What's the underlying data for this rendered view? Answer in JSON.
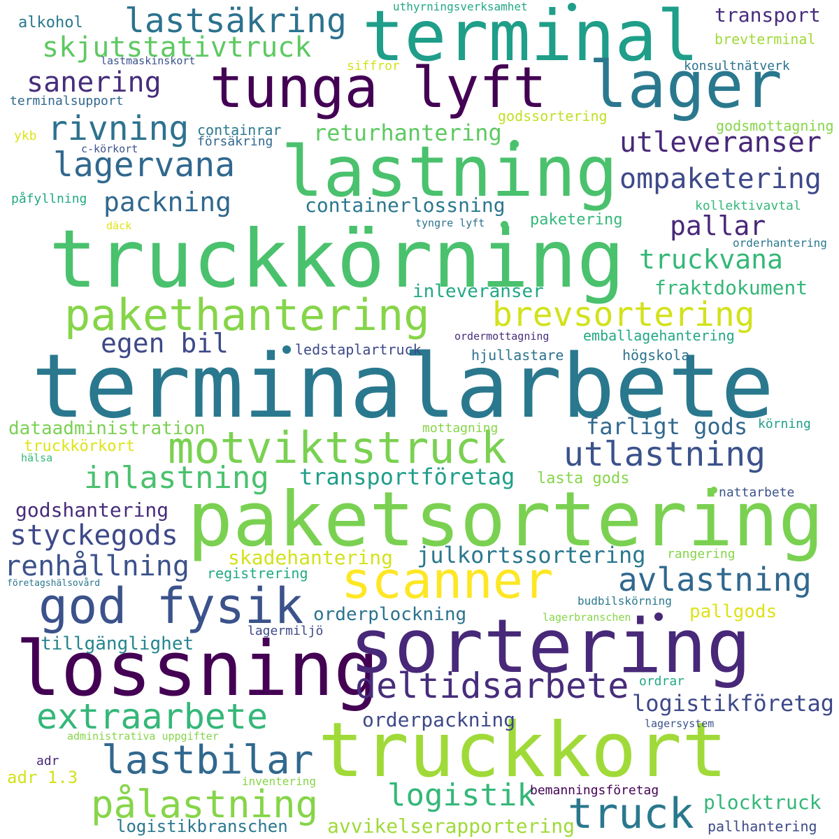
{
  "words": [
    {
      "text": "terminalarbete",
      "color": "#2a788e"
    },
    {
      "text": "truckkörning",
      "color": "#4ac16d"
    },
    {
      "text": "paketsortering",
      "color": "#7ad151"
    },
    {
      "text": "truckkort",
      "color": "#a0da39"
    },
    {
      "text": "lossning",
      "color": "#440154"
    },
    {
      "text": "sortering",
      "color": "#482878"
    },
    {
      "text": "terminal",
      "color": "#1f9e89"
    },
    {
      "text": "lastning",
      "color": "#4ac16d"
    },
    {
      "text": "tunga lyft",
      "color": "#440154"
    },
    {
      "text": "lager",
      "color": "#2a788e"
    },
    {
      "text": "god fysik",
      "color": "#3b528b"
    },
    {
      "text": "scanner",
      "color": "#fde725"
    },
    {
      "text": "pakethantering",
      "color": "#86d549"
    },
    {
      "text": "motviktstruck",
      "color": "#7ad151"
    },
    {
      "text": "brevsortering",
      "color": "#d2e21b"
    },
    {
      "text": "truck",
      "color": "#2a788e"
    },
    {
      "text": "lastbilar",
      "color": "#31688e"
    },
    {
      "text": "pålastning",
      "color": "#86d549"
    },
    {
      "text": "extraarbete",
      "color": "#35b779"
    },
    {
      "text": "deltidsarbete",
      "color": "#472d7b"
    },
    {
      "text": "lastsäkring",
      "color": "#2c728e"
    },
    {
      "text": "rivning",
      "color": "#2c728e"
    },
    {
      "text": "lagervana",
      "color": "#31688e"
    },
    {
      "text": "utlastning",
      "color": "#3b528b"
    },
    {
      "text": "avlastning",
      "color": "#31688e"
    },
    {
      "text": "logistik",
      "color": "#35b779"
    },
    {
      "text": "inlastning",
      "color": "#4ac16d"
    },
    {
      "text": "skjutstativtruck",
      "color": "#5ec962"
    },
    {
      "text": "sanering",
      "color": "#472d7b"
    },
    {
      "text": "utleveranser",
      "color": "#482878"
    },
    {
      "text": "ompaketering",
      "color": "#3e4989"
    },
    {
      "text": "renhållning",
      "color": "#3b528b"
    },
    {
      "text": "styckegods",
      "color": "#3e4989"
    },
    {
      "text": "truckvana",
      "color": "#35b779"
    },
    {
      "text": "packning",
      "color": "#31688e"
    },
    {
      "text": "pallar",
      "color": "#482878"
    },
    {
      "text": "egen bil",
      "color": "#3e4989"
    },
    {
      "text": "logistikföretag",
      "color": "#3e4989"
    },
    {
      "text": "julkortssortering",
      "color": "#2a788e"
    },
    {
      "text": "returhantering",
      "color": "#5ec962"
    },
    {
      "text": "transport",
      "color": "#472d7b"
    },
    {
      "text": "farligt gods",
      "color": "#31688e"
    },
    {
      "text": "transportföretag",
      "color": "#1f9e89"
    },
    {
      "text": "fraktdokument",
      "color": "#35b779"
    },
    {
      "text": "containerlossning",
      "color": "#2a788e"
    },
    {
      "text": "plocktruck",
      "color": "#35b779"
    },
    {
      "text": "orderpackning",
      "color": "#3e4989"
    },
    {
      "text": "avvikelserapportering",
      "color": "#a0da39"
    },
    {
      "text": "godshantering",
      "color": "#472d7b"
    },
    {
      "text": "skadehantering",
      "color": "#d2e21b"
    },
    {
      "text": "orderplockning",
      "color": "#2c728e"
    },
    {
      "text": "inleveranser",
      "color": "#22a884"
    },
    {
      "text": "dataadministration",
      "color": "#7ad151"
    },
    {
      "text": "tillgänglighet",
      "color": "#25858e"
    },
    {
      "text": "pallgods",
      "color": "#dde318"
    },
    {
      "text": "logistikbranschen",
      "color": "#2a788e"
    },
    {
      "text": "alkohol",
      "color": "#2a788e"
    },
    {
      "text": "uthyrningsverksamhet",
      "color": "#22a884"
    },
    {
      "text": "brevterminal",
      "color": "#a0da39"
    },
    {
      "text": "lastmaskinskort",
      "color": "#3b528b"
    },
    {
      "text": "siffror",
      "color": "#d2e21b"
    },
    {
      "text": "konsultnätverk",
      "color": "#2c728e"
    },
    {
      "text": "terminalsupport",
      "color": "#31688e"
    },
    {
      "text": "godssortering",
      "color": "#c2df23"
    },
    {
      "text": "containrar",
      "color": "#2a788e"
    },
    {
      "text": "ykb",
      "color": "#dde318"
    },
    {
      "text": "försäkring",
      "color": "#31688e"
    },
    {
      "text": "c-körkort",
      "color": "#3b528b"
    },
    {
      "text": "godsmottagning",
      "color": "#86d549"
    },
    {
      "text": "påfyllning",
      "color": "#22a884"
    },
    {
      "text": "kollektivavtal",
      "color": "#35b779"
    },
    {
      "text": "däck",
      "color": "#dde318"
    },
    {
      "text": "tyngre lyft",
      "color": "#2c728e"
    },
    {
      "text": "paketering",
      "color": "#35b779"
    },
    {
      "text": "orderhantering",
      "color": "#2a788e"
    },
    {
      "text": "ordermottagning",
      "color": "#472d7b"
    },
    {
      "text": "emballagehantering",
      "color": "#22a884"
    },
    {
      "text": "ledstaplartruck",
      "color": "#3e4989"
    },
    {
      "text": "hjullastare",
      "color": "#2c728e"
    },
    {
      "text": "högskola",
      "color": "#2c728e"
    },
    {
      "text": "mottagning",
      "color": "#86d549"
    },
    {
      "text": "körning",
      "color": "#1f9e89"
    },
    {
      "text": "truckkörkort",
      "color": "#dde318"
    },
    {
      "text": "hälsa",
      "color": "#35b779"
    },
    {
      "text": "lasta gods",
      "color": "#86d549"
    },
    {
      "text": "nattarbete",
      "color": "#3b528b"
    },
    {
      "text": "rangering",
      "color": "#86d549"
    },
    {
      "text": "registrering",
      "color": "#22a884"
    },
    {
      "text": "företagshälsovård",
      "color": "#2a788e"
    },
    {
      "text": "budbilskörning",
      "color": "#2a788e"
    },
    {
      "text": "lagerbranschen",
      "color": "#86d549"
    },
    {
      "text": "lagermiljö",
      "color": "#3e4989"
    },
    {
      "text": "ordrar",
      "color": "#22a884"
    },
    {
      "text": "lagersystem",
      "color": "#3b528b"
    },
    {
      "text": "administrativa uppgifter",
      "color": "#86d549"
    },
    {
      "text": "adr",
      "color": "#482878"
    },
    {
      "text": "adr 1.3",
      "color": "#d2e21b"
    },
    {
      "text": "inventering",
      "color": "#86d549"
    },
    {
      "text": "bemanningsföretag",
      "color": "#440154"
    },
    {
      "text": "pallhantering",
      "color": "#3e4989"
    }
  ]
}
